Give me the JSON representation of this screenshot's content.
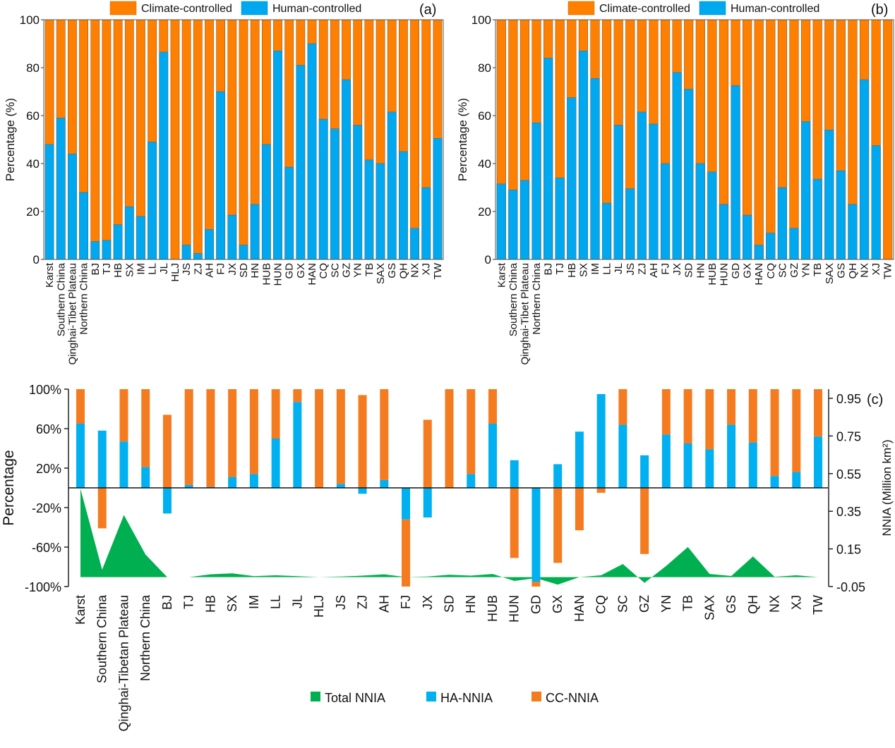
{
  "chart_data": [
    {
      "id": "a",
      "type": "bar",
      "stacked": true,
      "panel_label": "(a)",
      "title": "",
      "xlabel": "",
      "ylabel": "Percentage (%)",
      "ylim": [
        0,
        100
      ],
      "yticks": [
        "0",
        "20",
        "40",
        "60",
        "80",
        "100"
      ],
      "legend_position": "top",
      "legend": [
        {
          "name": "Climate-controlled",
          "color": "#ff8000"
        },
        {
          "name": "Human-controlled",
          "color": "#00a8f0"
        }
      ],
      "categories": [
        "Karst",
        "Southern China",
        "Qinghai-Tibet Plateau",
        "Northern China",
        "BJ",
        "TJ",
        "HB",
        "SX",
        "IM",
        "LL",
        "JL",
        "HLJ",
        "JS",
        "ZJ",
        "AH",
        "FJ",
        "JX",
        "SD",
        "HN",
        "HUB",
        "HUN",
        "GD",
        "GX",
        "HAN",
        "CQ",
        "SC",
        "GZ",
        "YN",
        "TB",
        "SAX",
        "GS",
        "QH",
        "NX",
        "XJ",
        "TW"
      ],
      "series": [
        {
          "name": "Human-controlled",
          "values": [
            48,
            59,
            44,
            28,
            7.5,
            8,
            14.5,
            22,
            18,
            49,
            86.5,
            0,
            6,
            2.5,
            12.5,
            70,
            18.5,
            6,
            23,
            48,
            87,
            38.5,
            81,
            90,
            58.5,
            54.5,
            75,
            56,
            41.5,
            40,
            61.5,
            45,
            13,
            30,
            50.5
          ]
        },
        {
          "name": "Climate-controlled",
          "values": [
            52,
            41,
            56,
            72,
            92.5,
            92,
            85.5,
            78,
            82,
            51,
            13.5,
            100,
            94,
            97.5,
            87.5,
            30,
            81.5,
            94,
            77,
            52,
            13,
            61.5,
            19,
            10,
            41.5,
            45.5,
            25,
            44,
            58.5,
            60,
            38.5,
            55,
            87,
            70,
            49.5
          ]
        }
      ]
    },
    {
      "id": "b",
      "type": "bar",
      "stacked": true,
      "panel_label": "(b)",
      "title": "",
      "xlabel": "",
      "ylabel": "Percentage (%)",
      "ylim": [
        0,
        100
      ],
      "yticks": [
        "0",
        "20",
        "40",
        "60",
        "80",
        "100"
      ],
      "legend_position": "top",
      "legend": [
        {
          "name": "Climate-controlled",
          "color": "#ff8000"
        },
        {
          "name": "Human-controlled",
          "color": "#00a8f0"
        }
      ],
      "categories": [
        "Karst",
        "Southern China",
        "Qinghai-Tibet Plateau",
        "Northern China",
        "BJ",
        "TJ",
        "HB",
        "SX",
        "IM",
        "LL",
        "JL",
        "JS",
        "ZJ",
        "AH",
        "FJ",
        "JX",
        "SD",
        "HN",
        "HUB",
        "HUN",
        "GD",
        "GX",
        "HAN",
        "CQ",
        "SC",
        "GZ",
        "YN",
        "TB",
        "SAX",
        "GS",
        "QH",
        "NX",
        "XJ",
        "TW"
      ],
      "series": [
        {
          "name": "Human-controlled",
          "values": [
            31.5,
            29,
            33,
            57,
            84,
            34,
            67.5,
            87,
            75.5,
            23.5,
            56,
            29.5,
            61.5,
            56.5,
            40,
            78,
            71,
            40,
            36.5,
            23,
            72.5,
            18.5,
            6,
            11,
            30,
            13,
            57.5,
            33.5,
            54,
            37,
            23,
            75,
            47.5,
            0
          ]
        },
        {
          "name": "Climate-controlled",
          "values": [
            68.5,
            71,
            67,
            43,
            16,
            66,
            32.5,
            13,
            24.5,
            76.5,
            44,
            70.5,
            38.5,
            43.5,
            60,
            22,
            29,
            60,
            63.5,
            77,
            27.5,
            81.5,
            94,
            89,
            70,
            87,
            42.5,
            66.5,
            46,
            63,
            77,
            25,
            52.5,
            100
          ]
        }
      ]
    },
    {
      "id": "c",
      "type": "bar",
      "stacked": true,
      "panel_label": "(c)",
      "title": "",
      "xlabel": "",
      "ylabel": "Percentage",
      "ylabel_right": "NNIA (Million km²)",
      "ylim": [
        -100,
        100
      ],
      "ylim_right": [
        -0.05,
        1.05
      ],
      "yticks": [
        "100%",
        "60%",
        "20%",
        "-20%",
        "-60%",
        "-100%"
      ],
      "yticks_values": [
        100,
        60,
        20,
        -20,
        -60,
        -100
      ],
      "yticks_right": [
        "0.95",
        "0.75",
        "0.55",
        "0.35",
        "0.15",
        "-0.05"
      ],
      "yticks_right_values": [
        0.95,
        0.75,
        0.55,
        0.35,
        0.15,
        -0.05
      ],
      "legend_position": "bottom",
      "legend": [
        {
          "name": "Total NNIA",
          "color": "#00b050"
        },
        {
          "name": "HA-NNIA",
          "color": "#00b0f0"
        },
        {
          "name": "CC-NNIA",
          "color": "#f47b20"
        }
      ],
      "categories": [
        "Karst",
        "Southern China",
        "Qinghai-Tibetan Plateau",
        "Northern China",
        "BJ",
        "TJ",
        "HB",
        "SX",
        "IM",
        "LL",
        "JL",
        "HLJ",
        "JS",
        "ZJ",
        "AH",
        "FJ",
        "JX",
        "SD",
        "HN",
        "HUB",
        "HUN",
        "GD",
        "GX",
        "HAN",
        "CQ",
        "SC",
        "GZ",
        "YN",
        "TB",
        "SAX",
        "GS",
        "QH",
        "NX",
        "XJ",
        "TW"
      ],
      "series": [
        {
          "name": "HA-NNIA",
          "axis": "left",
          "unit": "%",
          "values": [
            65,
            58,
            47,
            21,
            -26,
            3,
            1,
            11,
            14,
            50,
            87,
            0,
            4,
            -6,
            8,
            -32,
            -30,
            0,
            14,
            65,
            28,
            -95,
            24,
            57,
            95,
            64,
            33,
            54,
            45,
            39,
            64,
            46,
            12,
            16,
            52
          ]
        },
        {
          "name": "CC-NNIA",
          "axis": "left",
          "unit": "%",
          "values": [
            35,
            -41,
            53,
            79,
            74,
            97,
            99,
            89,
            86,
            50,
            13,
            100,
            96,
            94,
            92,
            -68,
            69,
            100,
            86,
            35,
            -71,
            -5,
            -76,
            -43,
            -5,
            36,
            -67,
            46,
            55,
            61,
            36,
            54,
            88,
            84,
            48
          ]
        },
        {
          "name": "Total NNIA",
          "axis": "right",
          "type": "area",
          "unit": "Million km²",
          "values": [
            0.47,
            0.04,
            0.33,
            0.12,
            0.0,
            0.0,
            0.015,
            0.02,
            0.005,
            0.01,
            0.005,
            0.0,
            0.003,
            0.008,
            0.015,
            0.0,
            0.003,
            0.013,
            0.008,
            0.017,
            -0.02,
            -0.005,
            -0.04,
            0.0,
            0.01,
            0.07,
            -0.03,
            0.06,
            0.16,
            0.017,
            0.006,
            0.11,
            0.002,
            0.01,
            0.0
          ]
        }
      ]
    }
  ]
}
